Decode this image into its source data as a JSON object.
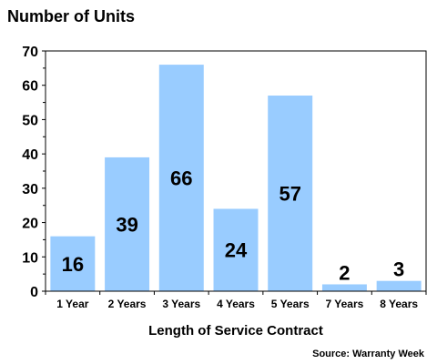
{
  "chart_data": {
    "type": "bar",
    "title": "Number of Units",
    "xlabel": "Length of Service Contract",
    "ylabel": "",
    "source": "Source: Warranty Week",
    "categories": [
      "1 Year",
      "2 Years",
      "3 Years",
      "4 Years",
      "5 Years",
      "7 Years",
      "8 Years"
    ],
    "values": [
      16,
      39,
      66,
      24,
      57,
      2,
      3
    ],
    "data_labels": [
      "16",
      "39",
      "66",
      "24",
      "57",
      "2",
      "3"
    ],
    "yticks": [
      "0",
      "10",
      "20",
      "30",
      "40",
      "50",
      "60",
      "70"
    ],
    "ylim": [
      0,
      70
    ],
    "grid": false,
    "legend": "none",
    "colors": {
      "bar": "#99ccff",
      "axis": "#000000"
    }
  }
}
